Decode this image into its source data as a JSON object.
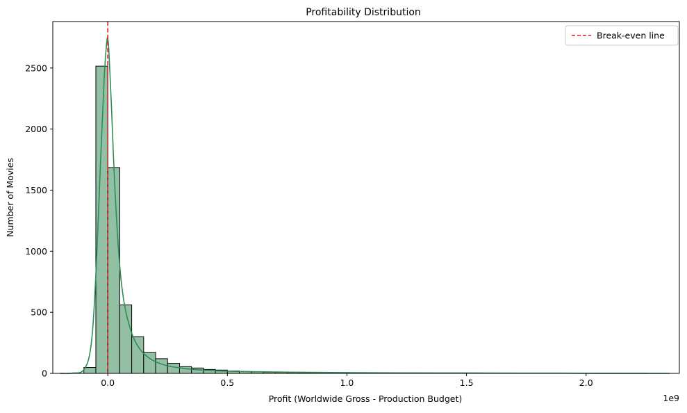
{
  "chart_data": {
    "type": "histogram",
    "title": "Profitability Distribution",
    "xlabel": "Profit (Worldwide Gross - Production Budget)",
    "ylabel": "Number of Movies",
    "x_offset_label": "1e9",
    "xlim": [
      -0.23,
      2.39
    ],
    "ylim": [
      0,
      2880
    ],
    "xticks": [
      0.0,
      0.5,
      1.0,
      1.5,
      2.0
    ],
    "xtick_labels": [
      "0.0",
      "0.5",
      "1.0",
      "1.5",
      "2.0"
    ],
    "yticks": [
      0,
      500,
      1000,
      1500,
      2000,
      2500
    ],
    "ytick_labels": [
      "0",
      "500",
      "1000",
      "1500",
      "2000",
      "2500"
    ],
    "bin_start": -0.1,
    "bin_width": 0.05,
    "counts": [
      48,
      2515,
      1685,
      560,
      300,
      172,
      120,
      82,
      55,
      44,
      32,
      27,
      20,
      15,
      12,
      10,
      8,
      7,
      6,
      5,
      4,
      4,
      3,
      3,
      2,
      2,
      2,
      2,
      1,
      1,
      1,
      1,
      1,
      1,
      1,
      1,
      1,
      1,
      1,
      1,
      1,
      1,
      1,
      1,
      1,
      1,
      1
    ],
    "bar_fill": "#93c0a4",
    "bar_edge": "#000000",
    "kde_color": "#2e8b57",
    "kde": {
      "x": [
        -0.2,
        -0.15,
        -0.1,
        -0.07,
        -0.05,
        -0.03,
        -0.015,
        -0.005,
        0.0,
        0.005,
        0.015,
        0.03,
        0.05,
        0.07,
        0.1,
        0.13,
        0.16,
        0.2,
        0.25,
        0.3,
        0.35,
        0.4,
        0.5,
        0.6,
        0.7,
        0.8,
        1.0,
        1.2,
        1.5,
        1.8,
        2.0,
        2.35
      ],
      "y": [
        0,
        2,
        30,
        230,
        800,
        1750,
        2420,
        2700,
        2740,
        2620,
        2200,
        1500,
        880,
        560,
        330,
        210,
        145,
        95,
        62,
        45,
        34,
        26,
        18,
        14,
        11,
        9,
        6,
        4,
        3,
        2,
        1,
        0
      ]
    },
    "reference_line": {
      "x": 0.0,
      "label": "Break-even line",
      "color": "#e41a1c",
      "style": "dashed"
    },
    "legend": {
      "position": "top-right",
      "entries": [
        "Break-even line"
      ]
    }
  }
}
